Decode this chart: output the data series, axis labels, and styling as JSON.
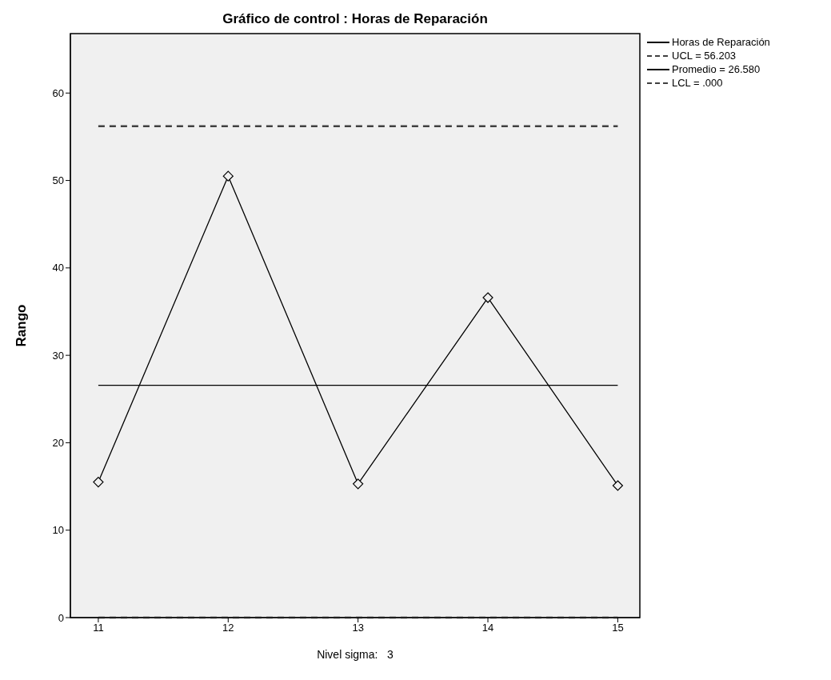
{
  "chart_data": {
    "type": "line",
    "title": "Gráfico de control : Horas de Reparación",
    "ylabel": "Rango",
    "categories": [
      "11",
      "12",
      "13",
      "14",
      "15"
    ],
    "series": [
      {
        "name": "Horas de Reparación",
        "color": "#000000",
        "values": [
          15.5,
          50.5,
          15.3,
          36.6,
          15.1
        ]
      }
    ],
    "ylim": [
      0,
      66.8
    ],
    "yticks": [
      0,
      10,
      20,
      30,
      40,
      50,
      60
    ],
    "ref_lines": [
      {
        "axis": "y",
        "value": 56.203,
        "label": "UCL = 56.203",
        "line_style": "dashed",
        "color": "#404040"
      },
      {
        "axis": "y",
        "value": 26.58,
        "label": "Promedio = 26.580",
        "line_style": "solid",
        "color": "#000000"
      },
      {
        "axis": "y",
        "value": 0,
        "label": "LCL = .000",
        "line_style": "dashed",
        "color": "#404040"
      }
    ],
    "marker": "diamond",
    "line_style": "solid",
    "legend": "right",
    "grid": false,
    "annotations": [
      "Nivel sigma:   3"
    ]
  }
}
